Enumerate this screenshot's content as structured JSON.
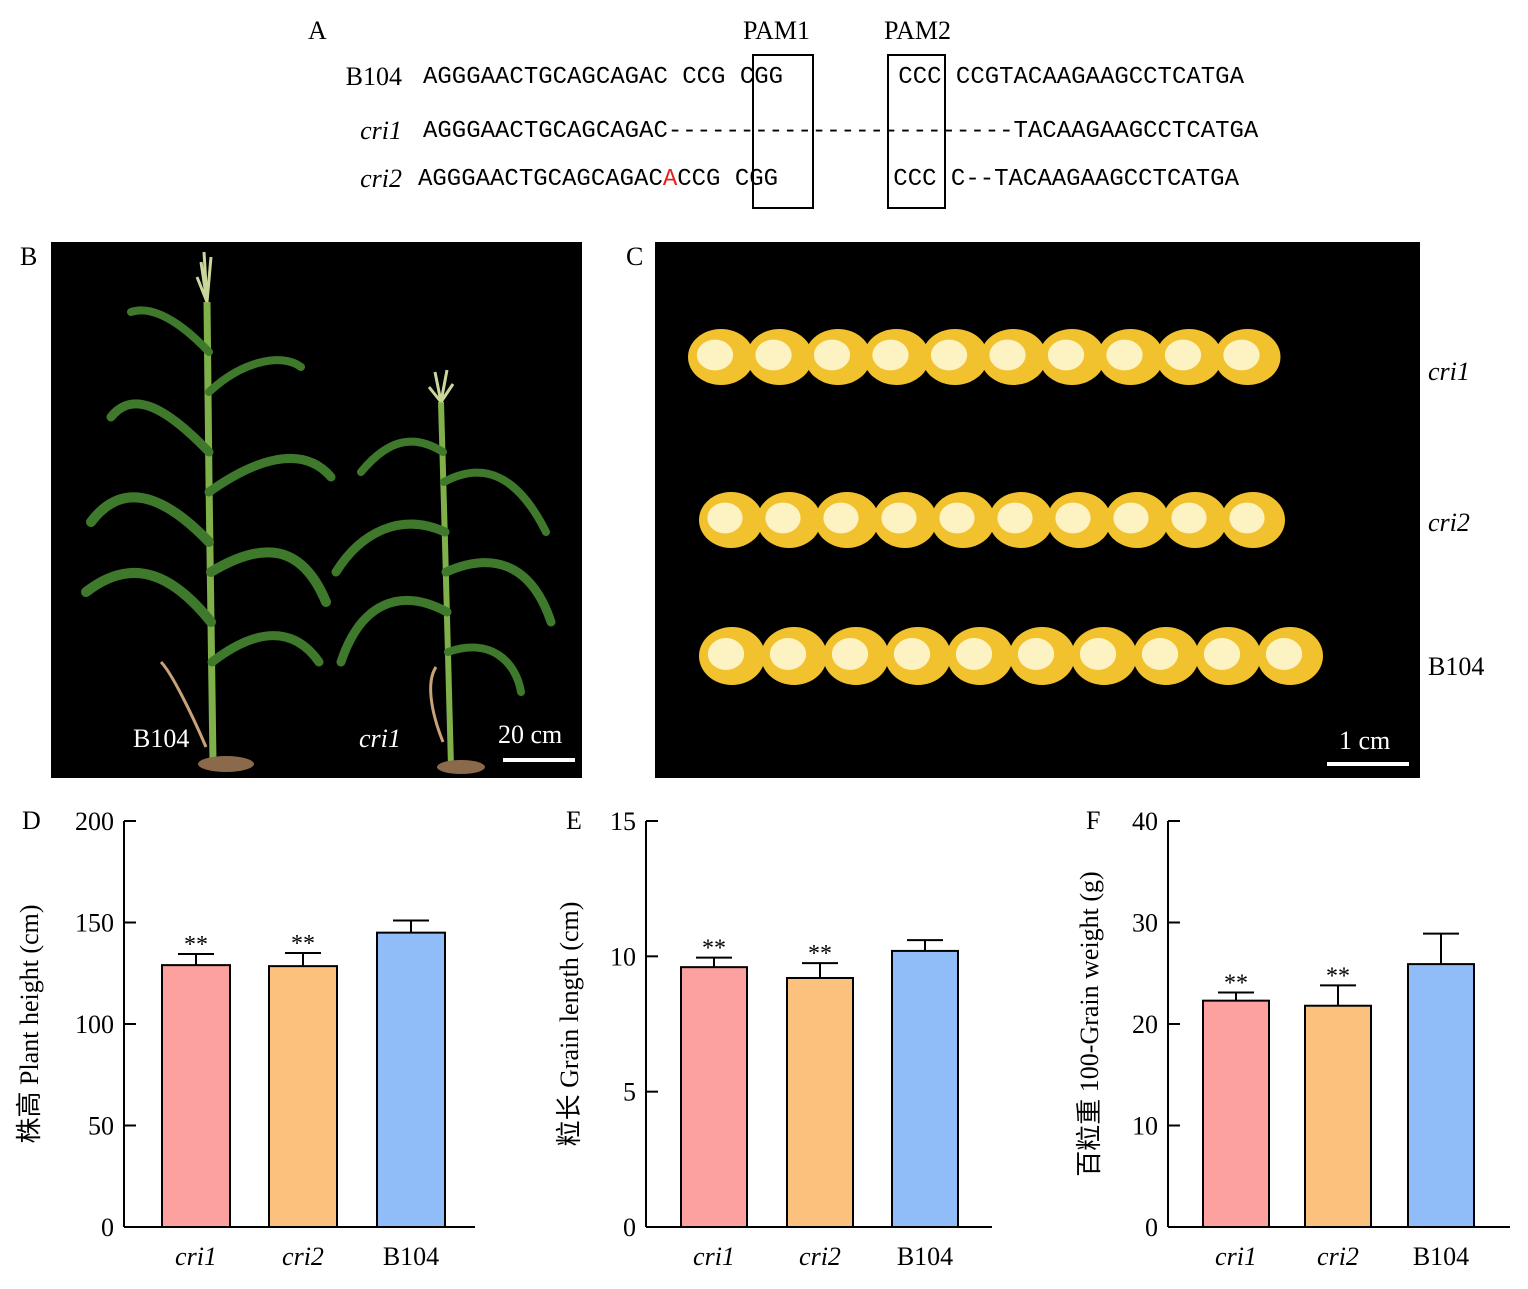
{
  "panel_a": {
    "letter": "A",
    "pam_labels": [
      "PAM1",
      "PAM2"
    ],
    "rows": [
      {
        "name": "B104",
        "italic": false,
        "segments": [
          {
            "text": "AGGGAACTGCAGCAGAC CCG ",
            "color": "#000000"
          },
          {
            "text": "CGG",
            "color": "#000000"
          },
          {
            "text": "        ",
            "color": "#000000"
          },
          {
            "text": "CCC",
            "color": "#000000"
          },
          {
            "text": " CCGTACAAGAAGCCTCATGA",
            "color": "#000000"
          }
        ]
      },
      {
        "name": "cri1",
        "italic": true,
        "segments": [
          {
            "text": "AGGGAACTGCAGCAGAC------------------------TACAAGAAGCCTCATGA",
            "color": "#000000"
          }
        ]
      },
      {
        "name": "cri2",
        "italic": true,
        "segments": [
          {
            "text": "AGGGAACTGCAGCAGAC",
            "color": "#000000"
          },
          {
            "text": "A",
            "color": "#e8201c"
          },
          {
            "text": "CCG ",
            "color": "#000000"
          },
          {
            "text": "CGG",
            "color": "#000000"
          },
          {
            "text": "        ",
            "color": "#000000"
          },
          {
            "text": "CCC",
            "color": "#000000"
          },
          {
            "text": " C--TACAAGAAGCCTCATGA",
            "color": "#000000"
          }
        ]
      }
    ]
  },
  "panel_b": {
    "letter": "B",
    "labels": {
      "left": "B104",
      "right": "cri1"
    },
    "scale": "20 cm",
    "colors": {
      "stem": "#7fb04a",
      "leaf": "#3f7a2c",
      "tassel": "#c9d89a",
      "root": "#c9a27a"
    }
  },
  "panel_c": {
    "letter": "C",
    "rows": [
      {
        "label": "cri1",
        "italic": true,
        "kernel_count": 10
      },
      {
        "label": "cri2",
        "italic": true,
        "kernel_count": 10
      },
      {
        "label": "B104",
        "italic": false,
        "kernel_count": 10
      }
    ],
    "scale": "1 cm",
    "colors": {
      "kernel_outer": "#f2c12e",
      "kernel_inner": "#fdf3c2"
    }
  },
  "chart_data": [
    {
      "type": "bar",
      "letter": "D",
      "ylabel": "株高 Plant height (cm)",
      "categories": [
        "cri1",
        "cri2",
        "B104"
      ],
      "values": [
        129,
        128.5,
        145
      ],
      "errors": [
        5.5,
        6.5,
        6
      ],
      "significance": [
        "**",
        "**",
        ""
      ],
      "ylim": [
        0,
        200
      ],
      "yticks": [
        0,
        50,
        100,
        150,
        200
      ],
      "colors": [
        "#fca0a0",
        "#fdc17e",
        "#90bdf7"
      ]
    },
    {
      "type": "bar",
      "letter": "E",
      "ylabel": "粒长 Grain length (cm)",
      "categories": [
        "cri1",
        "cri2",
        "B104"
      ],
      "values": [
        9.6,
        9.2,
        10.2
      ],
      "errors": [
        0.35,
        0.55,
        0.4
      ],
      "significance": [
        "**",
        "**",
        ""
      ],
      "ylim": [
        0,
        15
      ],
      "yticks": [
        0,
        5,
        10,
        15
      ],
      "colors": [
        "#fca0a0",
        "#fdc17e",
        "#90bdf7"
      ]
    },
    {
      "type": "bar",
      "letter": "F",
      "ylabel": "百粒重 100-Grain weight (g)",
      "categories": [
        "cri1",
        "cri2",
        "B104"
      ],
      "values": [
        22.3,
        21.8,
        25.9
      ],
      "errors": [
        0.8,
        2.0,
        3.0
      ],
      "significance": [
        "**",
        "**",
        ""
      ],
      "ylim": [
        0,
        40
      ],
      "yticks": [
        0,
        10,
        20,
        30,
        40
      ],
      "colors": [
        "#fca0a0",
        "#fdc17e",
        "#90bdf7"
      ]
    }
  ]
}
